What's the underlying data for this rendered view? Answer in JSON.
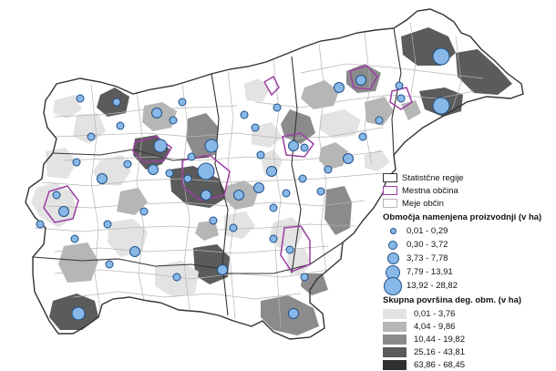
{
  "legend": {
    "boundaries": [
      {
        "label": "Statistčne regije",
        "stroke": "#333333",
        "width": 1.6
      },
      {
        "label": "Mestna občina",
        "stroke": "#9b3ea3",
        "width": 1.6
      },
      {
        "label": "Meje občin",
        "stroke": "#b5b5b5",
        "width": 1
      }
    ],
    "bubble_title": "Območja namenjena proizvodnji (v ha)",
    "bubbles": [
      {
        "label": "0,01 - 0,29",
        "class": 1
      },
      {
        "label": "0,30 - 3,72",
        "class": 2
      },
      {
        "label": "3,73 - 7,78",
        "class": 3
      },
      {
        "label": "7,79 - 13,91",
        "class": 4
      },
      {
        "label": "13,92 - 28,82",
        "class": 5
      }
    ],
    "fill_title": "Skupna površina deg. obm. (v ha)",
    "fills": [
      {
        "label": "0,01 - 3,76",
        "color": "#e3e3e3"
      },
      {
        "label": "4,04 - 9,86",
        "color": "#b6b6b6"
      },
      {
        "label": "10,44 - 19,82",
        "color": "#8b8b8b"
      },
      {
        "label": "25,16 - 43,81",
        "color": "#5b5b5b"
      },
      {
        "label": "63,86 - 68,45",
        "color": "#303030"
      }
    ]
  },
  "colors": {
    "bubble_fill": "#87b8e8",
    "bubble_stroke": "#1f4f86",
    "municipality_border": "#b5b5b5",
    "region_border": "#333333",
    "city_border": "#9b3ea3",
    "no_data": "#ffffff"
  }
}
